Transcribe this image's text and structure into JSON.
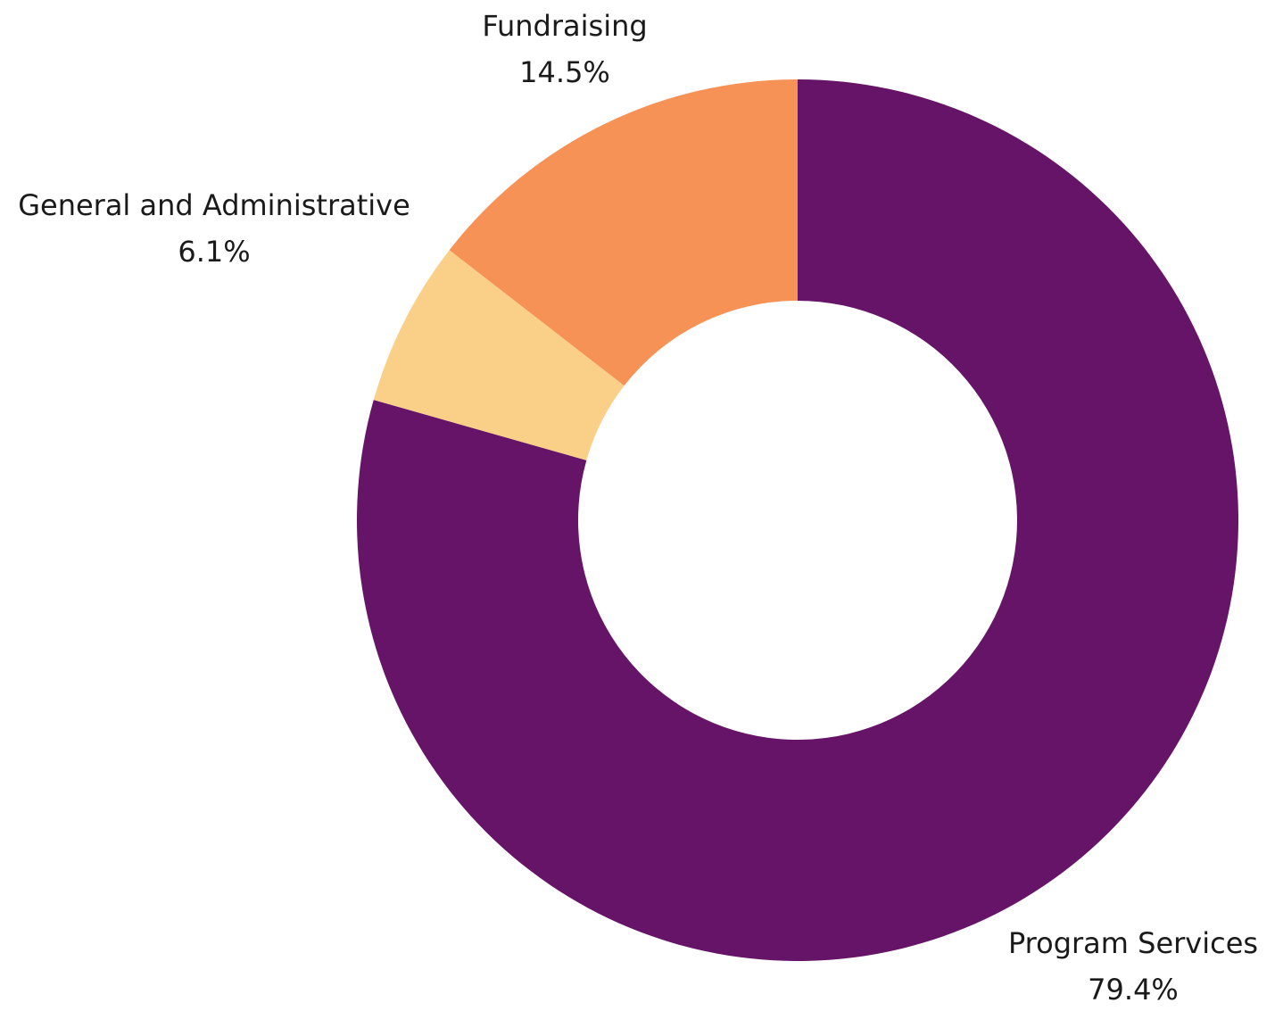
{
  "chart_data": {
    "type": "pie",
    "variant": "donut",
    "title": "",
    "legend": "none",
    "slices": [
      {
        "name": "Program Services",
        "value": 79.4,
        "label": "79.4%",
        "color": "#661467"
      },
      {
        "name": "General and Administrative",
        "value": 6.1,
        "label": "6.1%",
        "color": "#FAD089"
      },
      {
        "name": "Fundraising",
        "value": 14.5,
        "label": "14.5%",
        "color": "#F69256"
      }
    ]
  }
}
